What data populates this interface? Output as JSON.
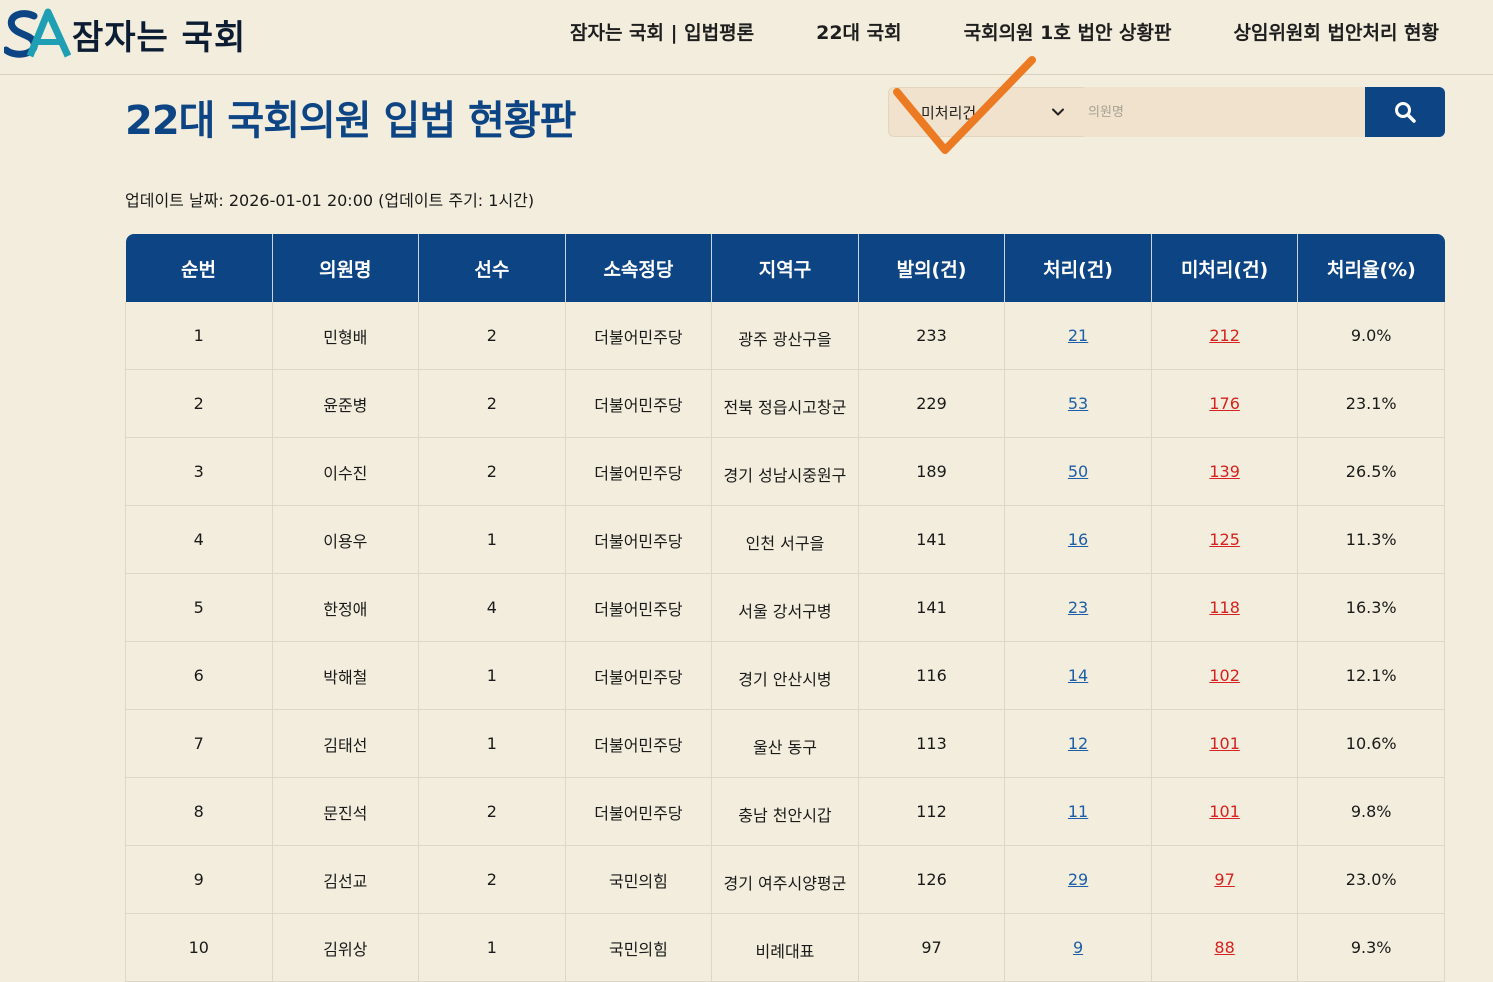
{
  "brand": {
    "logo_text": "잠자는 국회",
    "logo_mark": "SA",
    "colors": {
      "primary": "#0d4584",
      "accent_teal": "#1f9fb3",
      "check": "#ec7a22"
    }
  },
  "nav": {
    "items": [
      {
        "label": "잠자는 국회 | 입법평론"
      },
      {
        "label": "22대 국회"
      },
      {
        "label": "국회의원 1호 법안 상황판"
      },
      {
        "label": "상임위원회 법안처리 현황"
      }
    ]
  },
  "page": {
    "title": "22대 국회의원 입법 현황판",
    "update_text": "업데이트 날짜: 2026-01-01 20:00 (업데이트 주기: 1시간)"
  },
  "search": {
    "selected_filter": "미처리건",
    "placeholder": "의원명",
    "value": "",
    "button_icon": "search-icon"
  },
  "table": {
    "headers": [
      "순번",
      "의원명",
      "선수",
      "소속정당",
      "지역구",
      "발의(건)",
      "처리(건)",
      "미처리(건)",
      "처리율(%)"
    ],
    "rows": [
      {
        "no": "1",
        "name": "민형배",
        "terms": "2",
        "party": "더불어민주당",
        "district": "광주 광산구을",
        "proposed": "233",
        "processed": "21",
        "pending": "212",
        "rate": "9.0%"
      },
      {
        "no": "2",
        "name": "윤준병",
        "terms": "2",
        "party": "더불어민주당",
        "district": "전북 정읍시고창군",
        "proposed": "229",
        "processed": "53",
        "pending": "176",
        "rate": "23.1%"
      },
      {
        "no": "3",
        "name": "이수진",
        "terms": "2",
        "party": "더불어민주당",
        "district": "경기 성남시중원구",
        "proposed": "189",
        "processed": "50",
        "pending": "139",
        "rate": "26.5%"
      },
      {
        "no": "4",
        "name": "이용우",
        "terms": "1",
        "party": "더불어민주당",
        "district": "인천 서구을",
        "proposed": "141",
        "processed": "16",
        "pending": "125",
        "rate": "11.3%"
      },
      {
        "no": "5",
        "name": "한정애",
        "terms": "4",
        "party": "더불어민주당",
        "district": "서울 강서구병",
        "proposed": "141",
        "processed": "23",
        "pending": "118",
        "rate": "16.3%"
      },
      {
        "no": "6",
        "name": "박해철",
        "terms": "1",
        "party": "더불어민주당",
        "district": "경기 안산시병",
        "proposed": "116",
        "processed": "14",
        "pending": "102",
        "rate": "12.1%"
      },
      {
        "no": "7",
        "name": "김태선",
        "terms": "1",
        "party": "더불어민주당",
        "district": "울산 동구",
        "proposed": "113",
        "processed": "12",
        "pending": "101",
        "rate": "10.6%"
      },
      {
        "no": "8",
        "name": "문진석",
        "terms": "2",
        "party": "더불어민주당",
        "district": "충남 천안시갑",
        "proposed": "112",
        "processed": "11",
        "pending": "101",
        "rate": "9.8%"
      },
      {
        "no": "9",
        "name": "김선교",
        "terms": "2",
        "party": "국민의힘",
        "district": "경기 여주시양평군",
        "proposed": "126",
        "processed": "29",
        "pending": "97",
        "rate": "23.0%"
      },
      {
        "no": "10",
        "name": "김위상",
        "terms": "1",
        "party": "국민의힘",
        "district": "비례대표",
        "proposed": "97",
        "processed": "9",
        "pending": "88",
        "rate": "9.3%"
      }
    ]
  }
}
